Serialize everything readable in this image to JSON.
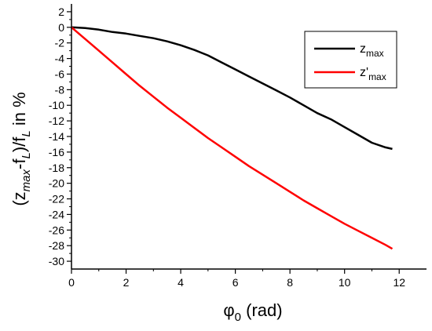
{
  "chart_data": {
    "type": "line",
    "xlabel": {
      "symbol": "φ",
      "sub": "0",
      "rest": " (rad)"
    },
    "ylabel": {
      "p1": "(z",
      "s1": "max",
      "p2": "-f",
      "s2": "L",
      "p3": ")/f",
      "s3": "L",
      "p4": " in %"
    },
    "xlim": [
      0,
      13
    ],
    "ylim": [
      -31,
      3
    ],
    "x_ticks": [
      0,
      2,
      4,
      6,
      8,
      10,
      12
    ],
    "x_tick_labels": [
      "0",
      "2",
      "4",
      "6",
      "8",
      "10",
      "12"
    ],
    "y_ticks": [
      2,
      0,
      -2,
      -4,
      -6,
      -8,
      -10,
      -12,
      -14,
      -16,
      -18,
      -20,
      -22,
      -24,
      -26,
      -28,
      -30
    ],
    "y_tick_labels": [
      "2",
      "0",
      "-2",
      "-4",
      "-6",
      "-8",
      "-10",
      "-12",
      "-14",
      "-16",
      "-18",
      "-20",
      "-22",
      "-24",
      "-26",
      "-28",
      "-30"
    ],
    "legend_position": "top-right",
    "series": [
      {
        "name_main": "z",
        "name_sub": "max",
        "color": "#000000",
        "x": [
          0,
          0.5,
          1.0,
          1.5,
          2.0,
          2.5,
          3.0,
          3.5,
          4.0,
          4.5,
          5.0,
          5.5,
          6.0,
          6.5,
          7.0,
          7.5,
          8.0,
          8.5,
          9.0,
          9.5,
          10.0,
          10.5,
          11.0,
          11.5,
          11.75
        ],
        "y": [
          0,
          -0.1,
          -0.3,
          -0.6,
          -0.8,
          -1.1,
          -1.4,
          -1.8,
          -2.3,
          -2.9,
          -3.6,
          -4.5,
          -5.4,
          -6.3,
          -7.2,
          -8.1,
          -9.0,
          -10.0,
          -11.0,
          -11.8,
          -12.8,
          -13.8,
          -14.8,
          -15.4,
          -15.6
        ]
      },
      {
        "name_main": "z'",
        "name_sub": "max",
        "color": "#ff0000",
        "x": [
          0,
          0.5,
          1.0,
          1.5,
          2.0,
          2.5,
          3.0,
          3.5,
          4.0,
          4.5,
          5.0,
          5.5,
          6.0,
          6.5,
          7.0,
          7.5,
          8.0,
          8.5,
          9.0,
          9.5,
          10.0,
          10.5,
          11.0,
          11.5,
          11.75
        ],
        "y": [
          0,
          -1.5,
          -3.0,
          -4.5,
          -6.0,
          -7.5,
          -8.9,
          -10.3,
          -11.6,
          -12.9,
          -14.2,
          -15.4,
          -16.6,
          -17.8,
          -18.9,
          -20.0,
          -21.1,
          -22.2,
          -23.2,
          -24.2,
          -25.2,
          -26.1,
          -27.0,
          -27.9,
          -28.4
        ]
      }
    ]
  }
}
